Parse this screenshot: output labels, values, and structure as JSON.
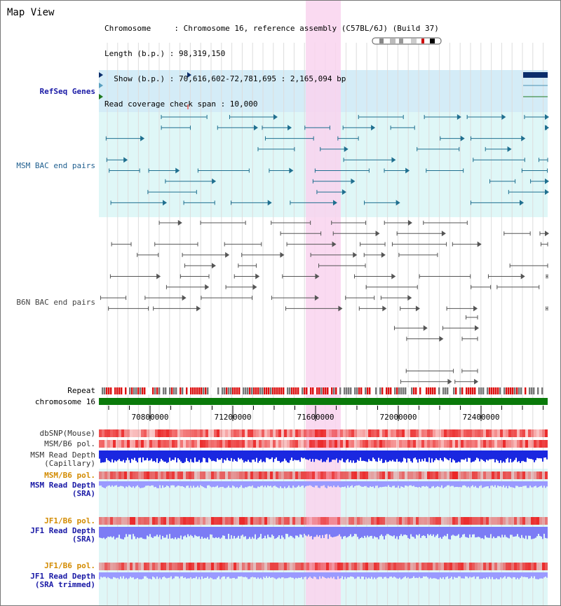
{
  "title": "Map View",
  "info": [
    "Chromosome     : Chromosome 16, reference assembly (C57BL/6J) (Build 37)",
    "Length (b.p.) : 98,319,150",
    "  Show (b.p.) : 70,616,602-72,781,695 : 2,165,094 bp",
    "Read coverage check span : 10,000"
  ],
  "tracks": [
    {
      "label": "RefSeq Genes",
      "color": "#1a1aa6"
    },
    {
      "label": "MSM BAC end pairs",
      "color": "#1f5f8f"
    },
    {
      "label": "B6N BAC end pairs",
      "color": "#444444"
    },
    {
      "label": "Repeat",
      "color": "#000000"
    },
    {
      "label": "chromosome 16",
      "color": "#000000"
    },
    {
      "label": "dbSNP(Mouse)",
      "color": "#333333"
    },
    {
      "label": "MSM/B6 pol.",
      "color": "#333333"
    },
    {
      "label": "MSM Read Depth\n(Capillary)",
      "color": "#333333"
    },
    {
      "label": "MSM/B6 pol.",
      "color": "#d38b00"
    },
    {
      "label": "MSM Read Depth\n(SRA)",
      "color": "#1a1aa6"
    },
    {
      "label": "JF1/B6 pol.",
      "color": "#d38b00"
    },
    {
      "label": "JF1 Read Depth\n(SRA)",
      "color": "#1a1aa6"
    },
    {
      "label": "JF1/B6 pol.",
      "color": "#d38b00"
    },
    {
      "label": "JF1 Read Depth\n(SRA trimmed)",
      "color": "#1a1aa6"
    }
  ],
  "axis_ticks": [
    "70800000",
    "71200000",
    "71600000",
    "72000000",
    "72400000"
  ],
  "colors": {
    "highlight": "#f9d3ef",
    "refseq_bg": "#d4ecf7",
    "msm_bg": "#dff7f7",
    "chrom": "#0a7a0a",
    "depth_dark": "#1a28e0",
    "depth_light": "#9a9aff"
  }
}
